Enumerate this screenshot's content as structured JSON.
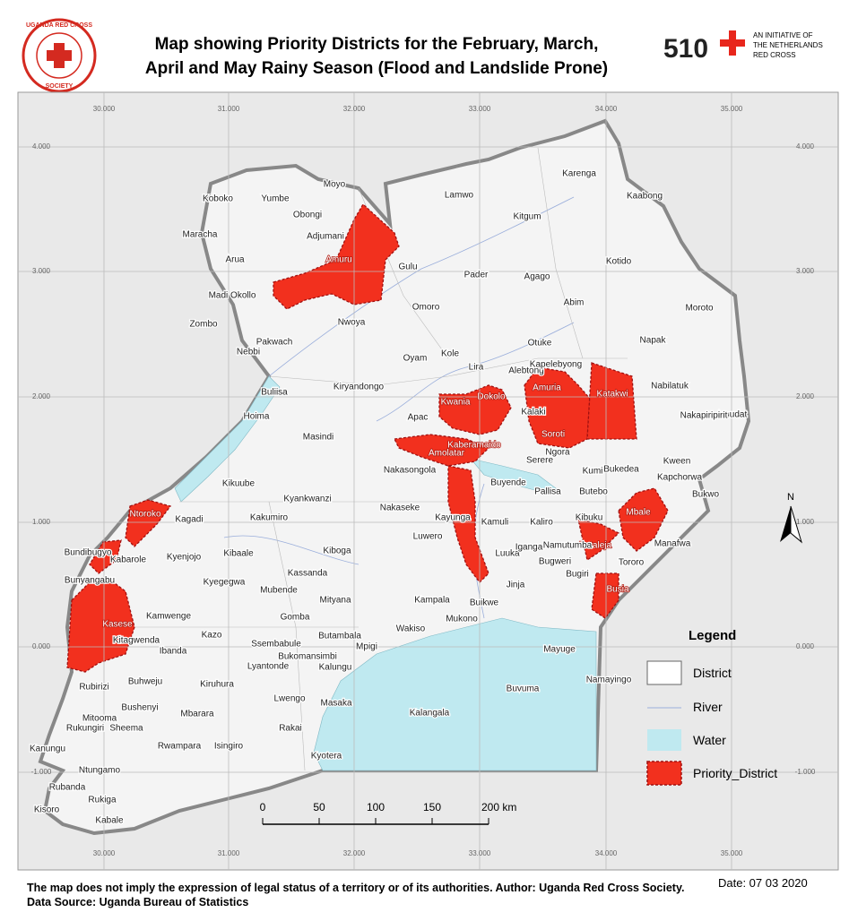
{
  "header": {
    "title_line1": "Map showing Priority Districts for the February, March,",
    "title_line2": "April and May Rainy Season (Flood and Landslide Prone)"
  },
  "logos": {
    "society_top": "UGANDA RED CROSS",
    "society_bottom": "SOCIETY",
    "brand": "510",
    "initiative": [
      "AN INITIATIVE OF",
      "THE NETHERLANDS",
      "RED CROSS"
    ]
  },
  "map": {
    "grid_x_labels": [
      "30.000",
      "31.000",
      "32.000",
      "33.000",
      "34.000",
      "35.000"
    ],
    "grid_y_labels": [
      "4.000",
      "3.000",
      "2.000",
      "1.000",
      "0.000",
      "-1.000"
    ],
    "district_labels": [
      "Koboko",
      "Yumbe",
      "Moyo",
      "Obongi",
      "Adjumani",
      "Maracha",
      "Arua",
      "Amuru",
      "Gulu",
      "Lamwo",
      "Kitgum",
      "Karenga",
      "Kaabong",
      "Pader",
      "Agago",
      "Kotido",
      "Madi Okollo",
      "Zombo",
      "Nwoya",
      "Omoro",
      "Abim",
      "Moroto",
      "Pakwach",
      "Nebbi",
      "Oyam",
      "Kole",
      "Otuke",
      "Napak",
      "Lira",
      "Alebtong",
      "Kapelebyong",
      "Amuria",
      "Katakwi",
      "Nabilatuk",
      "Buliisa",
      "Kiryandongo",
      "Kwania",
      "Dokolo",
      "Kalaki",
      "Soroti",
      "Amudat",
      "Nakapiripirit",
      "Apac",
      "Hoima",
      "Masindi",
      "Kaberamaido",
      "Amolatar",
      "Serere",
      "Ngora",
      "Nakasongola",
      "Kumi",
      "Bukedea",
      "Kween",
      "Kapchorwa",
      "Kikuube",
      "Kyankwanzi",
      "Buyende",
      "Pallisa",
      "Butebo",
      "Bukwo",
      "Ntoroko",
      "Kagadi",
      "Kakumiro",
      "Nakaseke",
      "Kayunga",
      "Kamuli",
      "Kaliro",
      "Kibuku",
      "Mbale",
      "Manafwa",
      "Tororo",
      "Butaleja",
      "Bundibugyo",
      "Kabarole",
      "Kyenjojo",
      "Kibaale",
      "Kiboga",
      "Luwero",
      "Luuka",
      "Iganga",
      "Namutumba",
      "Kassanda",
      "Kyegegwa",
      "Mubende",
      "Bunyangabu",
      "Bugweri",
      "Bugiri",
      "Busia",
      "Jinja",
      "Mityana",
      "Kampala",
      "Kasese",
      "Kamwenge",
      "Gomba",
      "Buikwe",
      "Wakiso",
      "Mukono",
      "Kitagwenda",
      "Ibanda",
      "Kazo",
      "Butambala",
      "Mpigi",
      "Ssembabule",
      "Bukomansimbi",
      "Mayuge",
      "Lyantonde",
      "Kalungu",
      "Rubirizi",
      "Buhweju",
      "Kiruhura",
      "Namayingo",
      "Buvuma",
      "Lwengo",
      "Masaka",
      "Bushenyi",
      "Mitooma",
      "Sheema",
      "Rukungiri",
      "Mbarara",
      "Kalangala",
      "Rakai",
      "Kanungu",
      "Rwampara",
      "Isingiro",
      "Kyotera",
      "Ntungamo",
      "Rubanda",
      "Rukiga",
      "Kisoro",
      "Kabale"
    ],
    "north": "N",
    "scale_bar": [
      "0",
      "50",
      "100",
      "150",
      "200 km"
    ],
    "legend": {
      "title": "Legend",
      "items": [
        "District",
        "River",
        "Water",
        "Priority_District"
      ]
    }
  },
  "footer": {
    "note": "The map does not imply the expression of legal status of a territory or of its authorities. Author: Uganda Red Cross Society. Data Source: Uganda Bureau of Statistics",
    "date": "Date: 07 03 2020"
  }
}
